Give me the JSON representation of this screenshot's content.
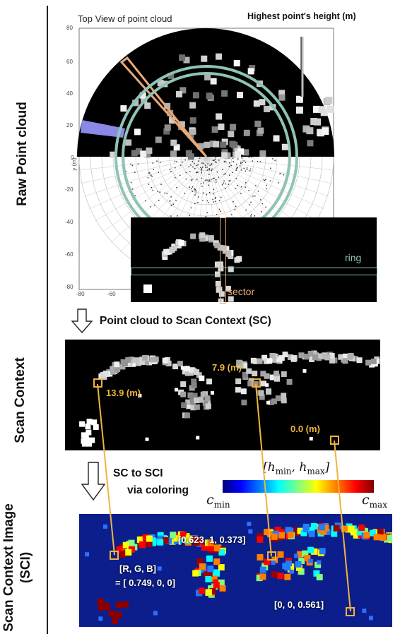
{
  "side_labels": {
    "raw": "Raw Point cloud",
    "sc": "Scan Context",
    "sci_line1": "Scan Context Image",
    "sci_line2": "(SCI)"
  },
  "top_view": {
    "title": "Top View of point cloud",
    "highest_label": "Highest point's height (m)",
    "y_axis_label": "y (m)",
    "y_ticks": [
      "80",
      "60",
      "40",
      "20",
      "0",
      "-20",
      "-40",
      "-60",
      "-80"
    ],
    "x_ticks": [
      "-80",
      "-60"
    ],
    "ring_label": "ring",
    "sector_label": "sector"
  },
  "steps": {
    "pc_to_sc": "Point cloud to Scan Context (SC)",
    "sc_to_sci_line1": "SC to SCI",
    "sc_to_sci_line2": "via coloring"
  },
  "sc_annotations": {
    "a": "13.9 (m)",
    "b": "7.9 (m)",
    "c": "0.0 (m)"
  },
  "colorbar": {
    "range_label": "[h",
    "h_min_sub": "min",
    "h_max_sub": "max",
    "c_min": "c",
    "c_min_sub": "min",
    "c_max": "c",
    "c_max_sub": "max",
    "comma": ", h",
    "close": "]"
  },
  "sci_annotations": {
    "rgb_line1": "[R, G, B]",
    "rgb_line2": "= [ 0.749, 0, 0]",
    "mid": "[0.623, 1, 0.373]",
    "low": "[0, 0, 0.561]"
  },
  "colors": {
    "accent_orange": "#f0b43c",
    "ring_green": "#8fc3b5",
    "sector_orange": "#e9a878",
    "sci_background": "#0c1e8c",
    "sector_highlight": "#8a8ae6"
  }
}
